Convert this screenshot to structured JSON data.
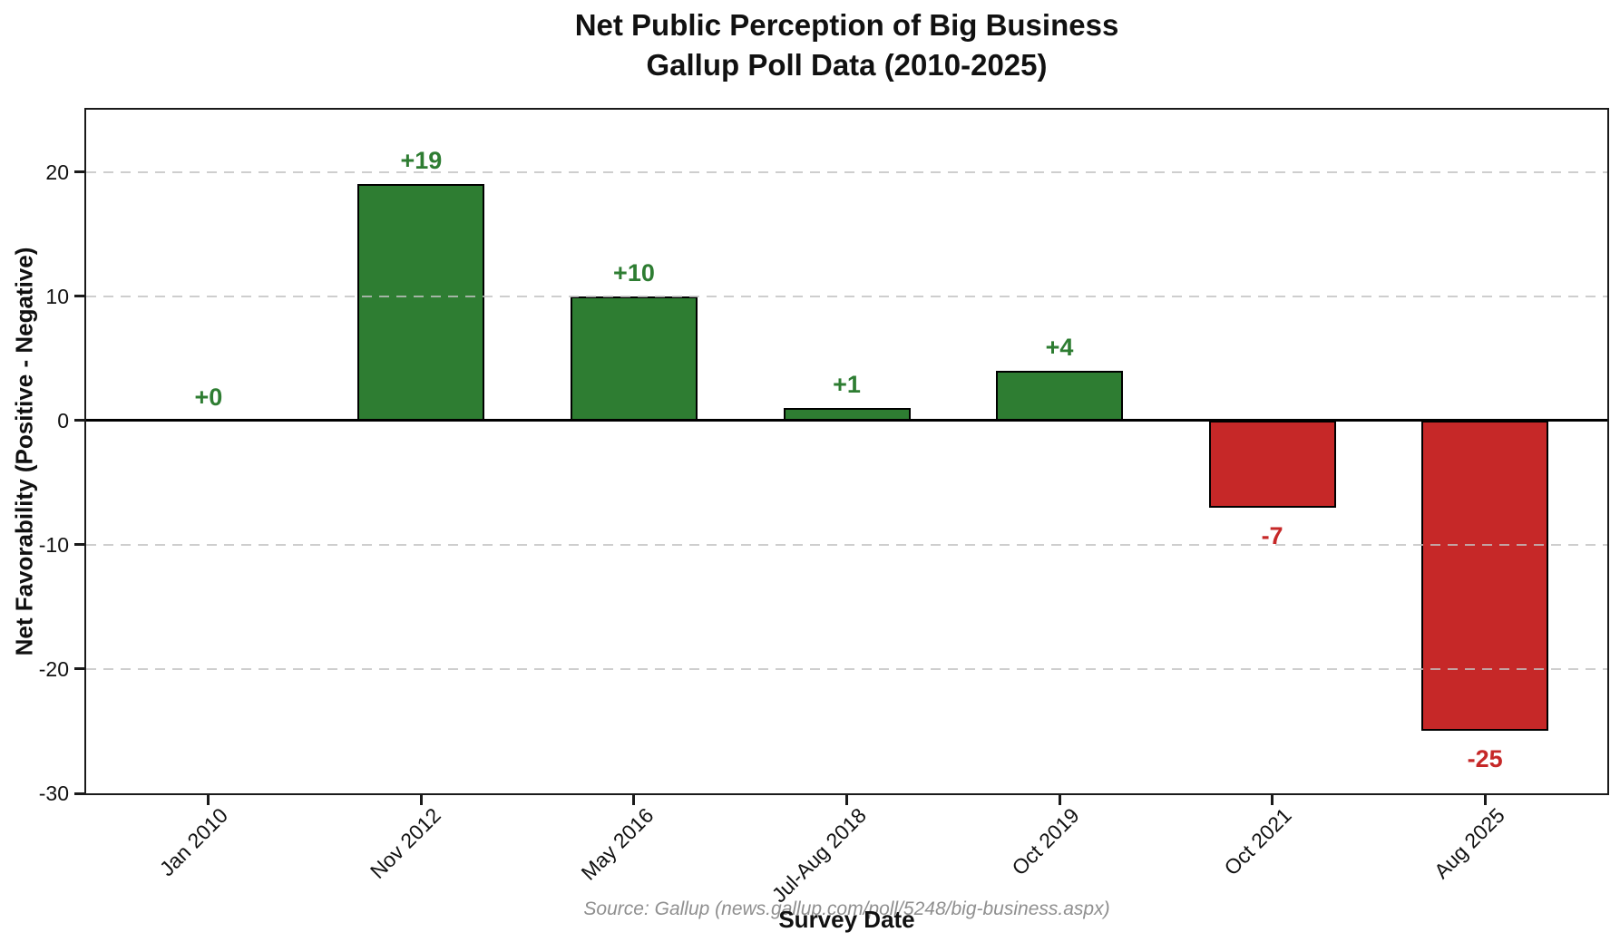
{
  "figure": {
    "title_line1": "Net Public Perception of Big Business",
    "title_line2": "Gallup Poll Data (2010-2025)",
    "source_note": "Source: Gallup (news.gallup.com/poll/5248/big-business.aspx)"
  },
  "chart_data": {
    "type": "bar",
    "title": "Net Public Perception of Big Business",
    "subtitle": "Gallup Poll Data (2010-2025)",
    "categories": [
      "Jan 2010",
      "Nov 2012",
      "May 2016",
      "Jul-Aug 2018",
      "Oct 2019",
      "Oct 2021",
      "Aug 2025"
    ],
    "values": [
      0,
      19,
      10,
      1,
      4,
      -7,
      -25
    ],
    "bar_labels": [
      "+0",
      "+19",
      "+10",
      "+1",
      "+4",
      "-7",
      "-25"
    ],
    "xlabel": "Survey Date",
    "ylabel": "Net Favorability (Positive - Negative)",
    "ylim": [
      -30,
      25
    ],
    "yticks": [
      20,
      10,
      0,
      -10,
      -20,
      -30
    ],
    "gridline_values": [
      20,
      10,
      -10,
      -20
    ],
    "grid_style": "dashed-horizontal-over-bars",
    "zero_line": 0,
    "legend": "none",
    "x_tick_rotation_deg": 45,
    "colors": {
      "positive_bar": "#2e7d32",
      "negative_bar": "#c62828",
      "positive_label": "#2e7d32",
      "negative_label": "#c62828",
      "bar_edge": "#000000",
      "grid": "#c2c2c2",
      "axis": "#1a1a1a",
      "text": "#111111",
      "source_text": "#8f8f8f"
    }
  }
}
